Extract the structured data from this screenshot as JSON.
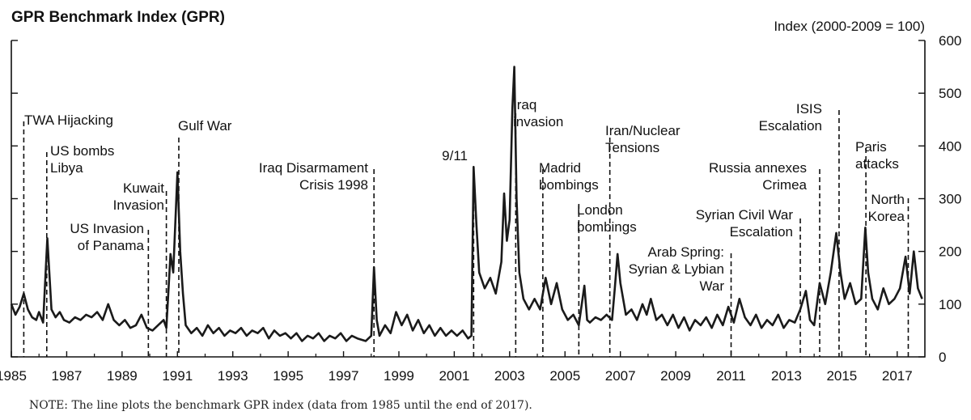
{
  "chart_data": {
    "type": "line",
    "title": "GPR Benchmark Index (GPR)",
    "ylabel": "Index (2000-2009 = 100)",
    "note": "NOTE: The line plots the benchmark GPR index (data from 1985 until the end of 2017).",
    "xlim": [
      1985,
      2018
    ],
    "ylim": [
      0,
      600
    ],
    "x_ticks": [
      "1985",
      "1987",
      "1989",
      "1991",
      "1993",
      "1995",
      "1997",
      "1999",
      "2001",
      "2003",
      "2005",
      "2007",
      "2009",
      "2011",
      "2013",
      "2015",
      "2017"
    ],
    "y_ticks": [
      "0",
      "100",
      "200",
      "300",
      "400",
      "500",
      "600"
    ],
    "series": [
      {
        "values": [
          [
            1985.0,
            100
          ],
          [
            1985.15,
            80
          ],
          [
            1985.3,
            95
          ],
          [
            1985.45,
            120
          ],
          [
            1985.6,
            90
          ],
          [
            1985.75,
            75
          ],
          [
            1985.9,
            70
          ],
          [
            1986.0,
            85
          ],
          [
            1986.15,
            65
          ],
          [
            1986.3,
            225
          ],
          [
            1986.45,
            90
          ],
          [
            1986.6,
            75
          ],
          [
            1986.75,
            85
          ],
          [
            1986.9,
            70
          ],
          [
            1987.1,
            65
          ],
          [
            1987.3,
            75
          ],
          [
            1987.5,
            70
          ],
          [
            1987.7,
            80
          ],
          [
            1987.9,
            75
          ],
          [
            1988.1,
            85
          ],
          [
            1988.3,
            70
          ],
          [
            1988.5,
            100
          ],
          [
            1988.7,
            70
          ],
          [
            1988.9,
            60
          ],
          [
            1989.1,
            70
          ],
          [
            1989.3,
            55
          ],
          [
            1989.5,
            60
          ],
          [
            1989.7,
            80
          ],
          [
            1989.9,
            55
          ],
          [
            1990.1,
            50
          ],
          [
            1990.3,
            60
          ],
          [
            1990.5,
            70
          ],
          [
            1990.6,
            55
          ],
          [
            1990.75,
            195
          ],
          [
            1990.85,
            160
          ],
          [
            1991.0,
            350
          ],
          [
            1991.1,
            200
          ],
          [
            1991.2,
            120
          ],
          [
            1991.3,
            60
          ],
          [
            1991.5,
            45
          ],
          [
            1991.7,
            55
          ],
          [
            1991.9,
            40
          ],
          [
            1992.1,
            60
          ],
          [
            1992.3,
            45
          ],
          [
            1992.5,
            55
          ],
          [
            1992.7,
            40
          ],
          [
            1992.9,
            50
          ],
          [
            1993.1,
            45
          ],
          [
            1993.3,
            55
          ],
          [
            1993.5,
            40
          ],
          [
            1993.7,
            50
          ],
          [
            1993.9,
            45
          ],
          [
            1994.1,
            55
          ],
          [
            1994.3,
            35
          ],
          [
            1994.5,
            50
          ],
          [
            1994.7,
            40
          ],
          [
            1994.9,
            45
          ],
          [
            1995.1,
            35
          ],
          [
            1995.3,
            45
          ],
          [
            1995.5,
            30
          ],
          [
            1995.7,
            40
          ],
          [
            1995.9,
            35
          ],
          [
            1996.1,
            45
          ],
          [
            1996.3,
            30
          ],
          [
            1996.5,
            40
          ],
          [
            1996.7,
            35
          ],
          [
            1996.9,
            45
          ],
          [
            1997.1,
            30
          ],
          [
            1997.3,
            40
          ],
          [
            1997.5,
            35
          ],
          [
            1997.8,
            30
          ],
          [
            1998.0,
            40
          ],
          [
            1998.1,
            170
          ],
          [
            1998.2,
            70
          ],
          [
            1998.3,
            40
          ],
          [
            1998.5,
            60
          ],
          [
            1998.7,
            45
          ],
          [
            1998.9,
            85
          ],
          [
            1999.1,
            60
          ],
          [
            1999.3,
            80
          ],
          [
            1999.5,
            50
          ],
          [
            1999.7,
            70
          ],
          [
            1999.9,
            45
          ],
          [
            2000.1,
            60
          ],
          [
            2000.3,
            40
          ],
          [
            2000.5,
            55
          ],
          [
            2000.7,
            40
          ],
          [
            2000.9,
            50
          ],
          [
            2001.1,
            40
          ],
          [
            2001.3,
            50
          ],
          [
            2001.5,
            35
          ],
          [
            2001.62,
            40
          ],
          [
            2001.7,
            360
          ],
          [
            2001.8,
            250
          ],
          [
            2001.9,
            160
          ],
          [
            2002.1,
            130
          ],
          [
            2002.3,
            150
          ],
          [
            2002.5,
            120
          ],
          [
            2002.7,
            180
          ],
          [
            2002.8,
            310
          ],
          [
            2002.9,
            220
          ],
          [
            2003.0,
            260
          ],
          [
            2003.1,
            470
          ],
          [
            2003.17,
            550
          ],
          [
            2003.25,
            300
          ],
          [
            2003.35,
            160
          ],
          [
            2003.5,
            110
          ],
          [
            2003.7,
            90
          ],
          [
            2003.9,
            110
          ],
          [
            2004.1,
            90
          ],
          [
            2004.3,
            150
          ],
          [
            2004.5,
            100
          ],
          [
            2004.7,
            140
          ],
          [
            2004.9,
            90
          ],
          [
            2005.1,
            70
          ],
          [
            2005.3,
            80
          ],
          [
            2005.5,
            60
          ],
          [
            2005.7,
            135
          ],
          [
            2005.8,
            70
          ],
          [
            2005.9,
            65
          ],
          [
            2006.1,
            75
          ],
          [
            2006.3,
            70
          ],
          [
            2006.5,
            80
          ],
          [
            2006.7,
            70
          ],
          [
            2006.8,
            130
          ],
          [
            2006.9,
            195
          ],
          [
            2007.0,
            140
          ],
          [
            2007.2,
            80
          ],
          [
            2007.4,
            90
          ],
          [
            2007.6,
            70
          ],
          [
            2007.8,
            100
          ],
          [
            2007.95,
            80
          ],
          [
            2008.1,
            110
          ],
          [
            2008.3,
            70
          ],
          [
            2008.5,
            80
          ],
          [
            2008.7,
            60
          ],
          [
            2008.9,
            80
          ],
          [
            2009.1,
            55
          ],
          [
            2009.3,
            75
          ],
          [
            2009.5,
            50
          ],
          [
            2009.7,
            70
          ],
          [
            2009.9,
            60
          ],
          [
            2010.1,
            75
          ],
          [
            2010.3,
            55
          ],
          [
            2010.5,
            80
          ],
          [
            2010.7,
            60
          ],
          [
            2010.9,
            95
          ],
          [
            2011.1,
            65
          ],
          [
            2011.3,
            110
          ],
          [
            2011.5,
            75
          ],
          [
            2011.7,
            60
          ],
          [
            2011.9,
            80
          ],
          [
            2012.1,
            55
          ],
          [
            2012.3,
            70
          ],
          [
            2012.5,
            60
          ],
          [
            2012.7,
            80
          ],
          [
            2012.9,
            55
          ],
          [
            2013.1,
            70
          ],
          [
            2013.3,
            65
          ],
          [
            2013.5,
            90
          ],
          [
            2013.7,
            125
          ],
          [
            2013.85,
            70
          ],
          [
            2014.0,
            60
          ],
          [
            2014.2,
            140
          ],
          [
            2014.4,
            100
          ],
          [
            2014.6,
            160
          ],
          [
            2014.8,
            235
          ],
          [
            2014.95,
            160
          ],
          [
            2015.1,
            110
          ],
          [
            2015.3,
            140
          ],
          [
            2015.5,
            100
          ],
          [
            2015.7,
            110
          ],
          [
            2015.85,
            245
          ],
          [
            2015.95,
            160
          ],
          [
            2016.1,
            110
          ],
          [
            2016.3,
            90
          ],
          [
            2016.5,
            130
          ],
          [
            2016.7,
            100
          ],
          [
            2016.9,
            110
          ],
          [
            2017.1,
            130
          ],
          [
            2017.3,
            190
          ],
          [
            2017.45,
            120
          ],
          [
            2017.6,
            200
          ],
          [
            2017.75,
            130
          ],
          [
            2017.9,
            110
          ]
        ]
      }
    ],
    "events": [
      {
        "label": [
          "TWA Hijacking"
        ],
        "x": 1985.45
      },
      {
        "label": [
          "US bombs",
          "Libya"
        ],
        "x": 1986.28
      },
      {
        "label": [
          "US Invasion",
          "of Panama"
        ],
        "x": 1989.95
      },
      {
        "label": [
          "Kuwait",
          "Invasion"
        ],
        "x": 1990.6
      },
      {
        "label": [
          "Gulf War"
        ],
        "x": 1991.05
      },
      {
        "label": [
          "Iraq Disarmament",
          "Crisis 1998"
        ],
        "x": 1998.1
      },
      {
        "label": [
          "9/11"
        ],
        "x": 2001.7
      },
      {
        "label": [
          "Iraq",
          "invasion"
        ],
        "x": 2003.22
      },
      {
        "label": [
          "Madrid",
          "bombings"
        ],
        "x": 2004.2
      },
      {
        "label": [
          "London",
          "bombings"
        ],
        "x": 2005.5
      },
      {
        "label": [
          "Iran/Nuclear",
          "Tensions"
        ],
        "x": 2006.62
      },
      {
        "label": [
          "Arab Spring:",
          "Syrian & Lybian",
          "War"
        ],
        "x": 2011.0
      },
      {
        "label": [
          "Syrian Civil War",
          "Escalation"
        ],
        "x": 2013.5
      },
      {
        "label": [
          "Russia annexes",
          "Crimea"
        ],
        "x": 2014.2
      },
      {
        "label": [
          "ISIS",
          "Escalation"
        ],
        "x": 2014.9
      },
      {
        "label": [
          "Paris",
          "attacks"
        ],
        "x": 2015.87
      },
      {
        "label": [
          "North",
          "Korea"
        ],
        "x": 2017.4
      }
    ]
  }
}
